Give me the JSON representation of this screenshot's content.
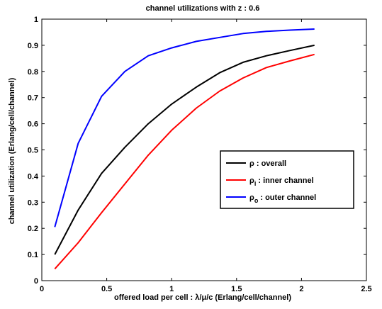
{
  "chart_data": {
    "type": "line",
    "title": "channel utilizations with z : 0.6",
    "xlabel_prefix": "offered load per cell : ",
    "xlabel_lambda": "λ",
    "xlabel_slash1": "/",
    "xlabel_mu": "μ",
    "xlabel_suffix": "/c (Erlang/cell/channel)",
    "ylabel": "channel utilization (Erlang/cell/channel)",
    "xlim": [
      0,
      2.5
    ],
    "ylim": [
      0,
      1
    ],
    "xticks": [
      0,
      0.5,
      1,
      1.5,
      2,
      2.5
    ],
    "xtick_labels": [
      "0",
      "0.5",
      "1",
      "1.5",
      "2",
      "2.5"
    ],
    "yticks": [
      0,
      0.1,
      0.2,
      0.3,
      0.4,
      0.5,
      0.6,
      0.7,
      0.8,
      0.9,
      1
    ],
    "ytick_labels": [
      "0",
      "0.1",
      "0.2",
      "0.3",
      "0.4",
      "0.5",
      "0.6",
      "0.7",
      "0.8",
      "0.9",
      "1"
    ],
    "grid": false,
    "legend_position": "right",
    "x": [
      0.1,
      0.28,
      0.46,
      0.64,
      0.82,
      1.0,
      1.19,
      1.37,
      1.55,
      1.73,
      1.91,
      2.1
    ],
    "series": [
      {
        "name": "ρ : overall",
        "symbol": "ρ",
        "subscript": "",
        "suffix": " : overall",
        "color": "#000000",
        "values": [
          0.1,
          0.27,
          0.41,
          0.51,
          0.6,
          0.675,
          0.74,
          0.795,
          0.835,
          0.86,
          0.88,
          0.9
        ]
      },
      {
        "name": "ρi : inner channel",
        "symbol": "ρ",
        "subscript": "i",
        "suffix": " : inner channel",
        "color": "#ff0000",
        "values": [
          0.045,
          0.145,
          0.26,
          0.37,
          0.48,
          0.575,
          0.66,
          0.725,
          0.775,
          0.815,
          0.84,
          0.865
        ]
      },
      {
        "name": "ρo : outer channel",
        "symbol": "ρ",
        "subscript": "o",
        "suffix": " : outer channel",
        "color": "#0000ff",
        "values": [
          0.205,
          0.525,
          0.705,
          0.8,
          0.86,
          0.89,
          0.915,
          0.93,
          0.945,
          0.953,
          0.958,
          0.962
        ]
      }
    ]
  }
}
